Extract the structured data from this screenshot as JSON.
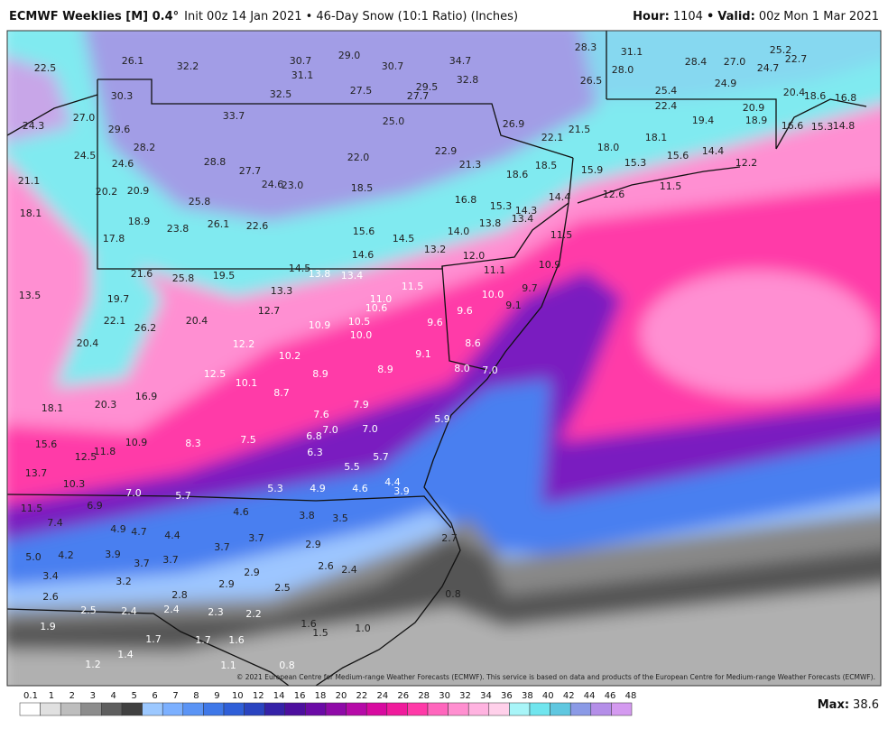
{
  "header": {
    "model": "ECMWF Weeklies [M] 0.4°",
    "run": "Init 00z 14 Jan 2021 • 46-Day Snow (10:1 Ratio) (Inches)",
    "hour_label": "Hour:",
    "hour": "1104",
    "separator": "•",
    "valid_label": "Valid:",
    "valid": "00z Mon 1 Mar 2021"
  },
  "labels": [
    "22.5",
    "26.1",
    "32.2",
    "30.7",
    "29.0",
    "30.7",
    "34.7",
    "28.3",
    "31.1",
    "25.2",
    "22.7",
    "28.4",
    "27.0",
    "24.7",
    "28.0",
    "31.1",
    "32.8",
    "26.5",
    "24.9",
    "20.4",
    "18.6",
    "16.8",
    "30.3",
    "32.5",
    "27.5",
    "29.5",
    "27.7",
    "25.4",
    "22.4",
    "20.9",
    "24.3",
    "27.0",
    "33.7",
    "25.0",
    "26.9",
    "19.4",
    "18.9",
    "16.6",
    "15.3",
    "14.8",
    "29.6",
    "21.5",
    "22.1",
    "18.1",
    "18.0",
    "28.2",
    "22.0",
    "22.9",
    "24.5",
    "24.6",
    "28.8",
    "21.3",
    "18.6",
    "18.5",
    "15.9",
    "15.3",
    "15.6",
    "14.4",
    "12.2",
    "21.1",
    "27.7",
    "24.6",
    "23.0",
    "18.5",
    "20.2",
    "20.9",
    "12.6",
    "11.5",
    "14.4",
    "25.8",
    "16.8",
    "15.3",
    "14.3",
    "18.1",
    "18.9",
    "23.8",
    "26.1",
    "22.6",
    "13.8",
    "13.4",
    "15.6",
    "14.0",
    "14.5",
    "11.5",
    "17.8",
    "13.2",
    "14.6",
    "12.0",
    "10.9",
    "21.6",
    "25.8",
    "19.5",
    "14.5",
    "13.8",
    "13.4",
    "11.1",
    "13.5",
    "19.7",
    "13.3",
    "11.0",
    "11.5",
    "10.0",
    "9.7",
    "12.7",
    "10.6",
    "9.6",
    "9.1",
    "22.1",
    "26.2",
    "20.4",
    "10.9",
    "10.5",
    "9.6",
    "10.0",
    "20.4",
    "12.2",
    "8.6",
    "10.2",
    "9.1",
    "12.5",
    "8.9",
    "8.9",
    "8.0",
    "7.0",
    "10.1",
    "8.7",
    "16.9",
    "20.3",
    "7.9",
    "18.1",
    "7.6",
    "5.9",
    "7.0",
    "7.0",
    "6.8",
    "8.3",
    "7.5",
    "15.6",
    "10.9",
    "11.8",
    "12.5",
    "6.3",
    "5.7",
    "5.5",
    "13.7",
    "4.4",
    "10.3",
    "5.3",
    "4.9",
    "4.6",
    "3.9",
    "7.0",
    "5.7",
    "6.9",
    "11.5",
    "4.6",
    "3.8",
    "3.5",
    "7.4",
    "4.9",
    "4.7",
    "4.4",
    "3.7",
    "2.7",
    "3.7",
    "2.9",
    "5.0",
    "4.2",
    "3.9",
    "3.7",
    "3.7",
    "2.6",
    "2.4",
    "2.9",
    "3.4",
    "3.2",
    "2.9",
    "2.5",
    "2.8",
    "0.8",
    "2.6",
    "2.5",
    "2.4",
    "2.4",
    "2.3",
    "2.2",
    "1.6",
    "1.9",
    "1.5",
    "1.0",
    "1.7",
    "1.7",
    "1.6",
    "1.4",
    "1.2",
    "1.1",
    "0.8"
  ],
  "colorbar": {
    "ticks": [
      "0.1",
      "1",
      "2",
      "3",
      "4",
      "5",
      "6",
      "7",
      "8",
      "9",
      "10",
      "12",
      "14",
      "16",
      "18",
      "20",
      "22",
      "24",
      "26",
      "28",
      "30",
      "32",
      "34",
      "36",
      "38",
      "40",
      "42",
      "44",
      "46",
      "48"
    ]
  },
  "footer": {
    "copyright": "© 2021 European Centre for Medium-range Weather Forecasts (ECMWF). This service is based on data and products of the European Centre for Medium-range Weather Forecasts (ECMWF).",
    "max_label": "Max:",
    "max": "38.6"
  }
}
